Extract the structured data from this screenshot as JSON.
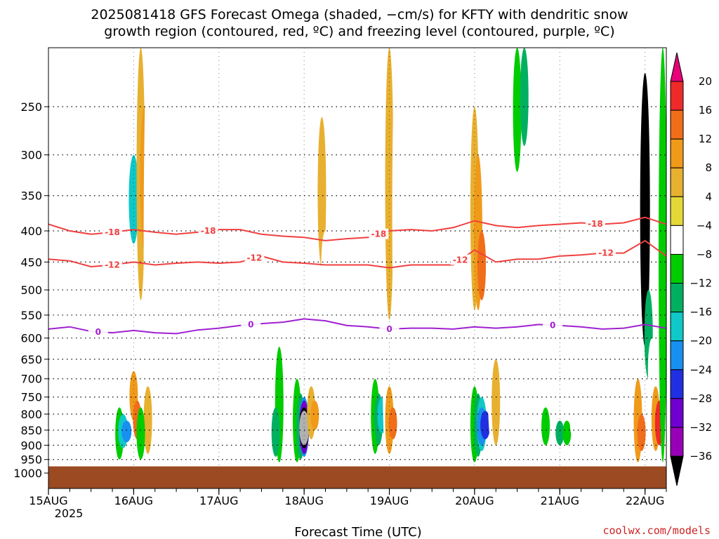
{
  "chart_data": {
    "type": "heatmap",
    "title_lines": [
      "2025081418 GFS Forecast Omega (shaded, −cm/s) for KFTY with dendritic snow",
      "growth region (contoured, red, ºC) and freezing level (contoured, purple, ºC)"
    ],
    "xlabel": "Forecast Time (UTC)",
    "x_ticks": [
      "15AUG",
      "16AUG",
      "17AUG",
      "18AUG",
      "19AUG",
      "20AUG",
      "21AUG",
      "22AUG"
    ],
    "x_tick_positions_hours": [
      18,
      42,
      66,
      90,
      114,
      138,
      162,
      186
    ],
    "x_range_hours": [
      18,
      192
    ],
    "x_year_label": "2025",
    "y_ticks": [
      "250",
      "300",
      "350",
      "400",
      "450",
      "500",
      "550",
      "600",
      "650",
      "700",
      "750",
      "800",
      "850",
      "900",
      "950",
      "1000"
    ],
    "y_tick_values": [
      250,
      300,
      350,
      400,
      450,
      500,
      550,
      600,
      650,
      700,
      750,
      800,
      850,
      900,
      950,
      1000
    ],
    "y_range_hpa": [
      200,
      1000
    ],
    "y_scale": "log-pressure, inverted",
    "ground_level_hpa": 975,
    "grid": true,
    "colorbar": {
      "levels": [
        "20",
        "16",
        "12",
        "8",
        "4",
        "−4",
        "−8",
        "−12",
        "−16",
        "−20",
        "−24",
        "−28",
        "−32",
        "−36"
      ],
      "colors": [
        "#e8007a",
        "#ee2a2a",
        "#f06e1a",
        "#f09a1a",
        "#e8b030",
        "#e4d838",
        "#ffffff",
        "#00cc00",
        "#00b060",
        "#10c8c8",
        "#1890f0",
        "#2030e0",
        "#7000d0",
        "#9800b8",
        "#b0b0b0",
        "#000000"
      ]
    },
    "contours": [
      {
        "name": "-18",
        "color": "#f04040",
        "labels": [
          "-18",
          "-18",
          "-18",
          "-18"
        ],
        "label_hours": [
          36,
          63,
          111,
          172
        ],
        "points": [
          [
            18,
            390
          ],
          [
            24,
            400
          ],
          [
            30,
            405
          ],
          [
            36,
            402
          ],
          [
            42,
            398
          ],
          [
            48,
            402
          ],
          [
            54,
            405
          ],
          [
            60,
            402
          ],
          [
            66,
            398
          ],
          [
            72,
            398
          ],
          [
            78,
            405
          ],
          [
            84,
            408
          ],
          [
            90,
            410
          ],
          [
            96,
            415
          ],
          [
            102,
            412
          ],
          [
            108,
            410
          ],
          [
            114,
            400
          ],
          [
            120,
            398
          ],
          [
            126,
            400
          ],
          [
            132,
            395
          ],
          [
            138,
            385
          ],
          [
            144,
            392
          ],
          [
            150,
            395
          ],
          [
            156,
            392
          ],
          [
            162,
            390
          ],
          [
            168,
            388
          ],
          [
            174,
            390
          ],
          [
            180,
            388
          ],
          [
            186,
            380
          ],
          [
            192,
            390
          ]
        ]
      },
      {
        "name": "-12",
        "color": "#f04040",
        "labels": [
          "-12",
          "-12",
          "-12",
          "-12"
        ],
        "label_hours": [
          36,
          76,
          134,
          175
        ],
        "points": [
          [
            18,
            445
          ],
          [
            24,
            448
          ],
          [
            30,
            458
          ],
          [
            36,
            455
          ],
          [
            42,
            450
          ],
          [
            48,
            455
          ],
          [
            54,
            452
          ],
          [
            60,
            450
          ],
          [
            66,
            452
          ],
          [
            72,
            450
          ],
          [
            78,
            440
          ],
          [
            84,
            450
          ],
          [
            90,
            452
          ],
          [
            96,
            455
          ],
          [
            102,
            455
          ],
          [
            108,
            455
          ],
          [
            114,
            460
          ],
          [
            120,
            455
          ],
          [
            126,
            455
          ],
          [
            132,
            455
          ],
          [
            138,
            430
          ],
          [
            144,
            450
          ],
          [
            150,
            445
          ],
          [
            156,
            445
          ],
          [
            162,
            440
          ],
          [
            168,
            438
          ],
          [
            174,
            435
          ],
          [
            180,
            435
          ],
          [
            186,
            415
          ],
          [
            192,
            440
          ]
        ]
      },
      {
        "name": "0",
        "color": "#a020d0",
        "labels": [
          "0",
          "0",
          "0",
          "0"
        ],
        "label_hours": [
          32,
          75,
          114,
          160
        ],
        "points": [
          [
            18,
            580
          ],
          [
            24,
            575
          ],
          [
            30,
            585
          ],
          [
            36,
            588
          ],
          [
            42,
            583
          ],
          [
            48,
            588
          ],
          [
            54,
            590
          ],
          [
            60,
            582
          ],
          [
            66,
            578
          ],
          [
            72,
            572
          ],
          [
            78,
            568
          ],
          [
            84,
            565
          ],
          [
            90,
            558
          ],
          [
            96,
            562
          ],
          [
            102,
            572
          ],
          [
            108,
            575
          ],
          [
            114,
            580
          ],
          [
            120,
            578
          ],
          [
            126,
            578
          ],
          [
            132,
            580
          ],
          [
            138,
            575
          ],
          [
            144,
            578
          ],
          [
            150,
            575
          ],
          [
            156,
            570
          ],
          [
            162,
            572
          ],
          [
            168,
            575
          ],
          [
            174,
            580
          ],
          [
            180,
            578
          ],
          [
            186,
            570
          ],
          [
            192,
            578
          ]
        ]
      }
    ],
    "omega_cells": [
      [
        20,
        250,
        380,
        6
      ],
      [
        20,
        680,
        800,
        6
      ],
      [
        22,
        560,
        760,
        6
      ],
      [
        26,
        300,
        480,
        6
      ],
      [
        28,
        700,
        900,
        6
      ],
      [
        36,
        260,
        560,
        6
      ],
      [
        40,
        200,
        460,
        6
      ],
      [
        40,
        480,
        620,
        6
      ],
      [
        38,
        780,
        950,
        7
      ],
      [
        39,
        800,
        910,
        9
      ],
      [
        40,
        820,
        890,
        10
      ],
      [
        42,
        200,
        960,
        6
      ],
      [
        42,
        300,
        420,
        9
      ],
      [
        42,
        680,
        820,
        3
      ],
      [
        43,
        760,
        880,
        2
      ],
      [
        44,
        200,
        520,
        4
      ],
      [
        45,
        250,
        430,
        3
      ],
      [
        46,
        200,
        920,
        6
      ],
      [
        46,
        720,
        930,
        4
      ],
      [
        44,
        780,
        950,
        7
      ],
      [
        50,
        240,
        420,
        6
      ],
      [
        52,
        330,
        680,
        6
      ],
      [
        56,
        300,
        480,
        6
      ],
      [
        60,
        360,
        560,
        6
      ],
      [
        62,
        250,
        380,
        6
      ],
      [
        66,
        420,
        620,
        6
      ],
      [
        72,
        300,
        520,
        6
      ],
      [
        74,
        440,
        700,
        6
      ],
      [
        76,
        250,
        420,
        6
      ],
      [
        80,
        440,
        640,
        6
      ],
      [
        82,
        700,
        840,
        6
      ],
      [
        83,
        620,
        960,
        7
      ],
      [
        82,
        780,
        940,
        8
      ],
      [
        86,
        500,
        700,
        6
      ],
      [
        86,
        740,
        920,
        6
      ],
      [
        88,
        700,
        960,
        7
      ],
      [
        89,
        740,
        950,
        8
      ],
      [
        90,
        750,
        940,
        10
      ],
      [
        90,
        760,
        930,
        12
      ],
      [
        90,
        780,
        910,
        15
      ],
      [
        90,
        790,
        900,
        14
      ],
      [
        92,
        720,
        880,
        4
      ],
      [
        93,
        760,
        850,
        3
      ],
      [
        94,
        200,
        560,
        6
      ],
      [
        95,
        260,
        460,
        4
      ],
      [
        96,
        400,
        520,
        6
      ],
      [
        100,
        300,
        520,
        6
      ],
      [
        104,
        330,
        440,
        6
      ],
      [
        106,
        400,
        520,
        6
      ],
      [
        110,
        700,
        930,
        7
      ],
      [
        111,
        740,
        900,
        8
      ],
      [
        112,
        750,
        860,
        9
      ],
      [
        113,
        200,
        960,
        6
      ],
      [
        114,
        200,
        560,
        4
      ],
      [
        114,
        720,
        930,
        3
      ],
      [
        115,
        780,
        880,
        2
      ],
      [
        116,
        200,
        700,
        6
      ],
      [
        124,
        460,
        560,
        6
      ],
      [
        128,
        640,
        760,
        6
      ],
      [
        134,
        760,
        900,
        6
      ],
      [
        137,
        250,
        960,
        6
      ],
      [
        138,
        250,
        540,
        4
      ],
      [
        139,
        300,
        540,
        3
      ],
      [
        140,
        400,
        520,
        2
      ],
      [
        138,
        720,
        960,
        7
      ],
      [
        139,
        740,
        940,
        8
      ],
      [
        140,
        750,
        920,
        9
      ],
      [
        140,
        780,
        900,
        10
      ],
      [
        141,
        790,
        880,
        11
      ],
      [
        143,
        650,
        900,
        6
      ],
      [
        144,
        650,
        900,
        4
      ],
      [
        148,
        200,
        360,
        6
      ],
      [
        150,
        200,
        320,
        7
      ],
      [
        152,
        200,
        290,
        8
      ],
      [
        156,
        200,
        320,
        6
      ],
      [
        154,
        760,
        900,
        6
      ],
      [
        158,
        780,
        900,
        7
      ],
      [
        162,
        820,
        900,
        8
      ],
      [
        164,
        820,
        900,
        7
      ],
      [
        166,
        760,
        880,
        6
      ],
      [
        170,
        220,
        320,
        6
      ],
      [
        176,
        200,
        260,
        6
      ],
      [
        180,
        300,
        360,
        6
      ],
      [
        180,
        580,
        640,
        6
      ],
      [
        182,
        200,
        300,
        6
      ],
      [
        184,
        700,
        960,
        3
      ],
      [
        185,
        800,
        920,
        2
      ],
      [
        186,
        220,
        620,
        15
      ],
      [
        187,
        500,
        700,
        8
      ],
      [
        188,
        600,
        760,
        6
      ],
      [
        189,
        720,
        920,
        3
      ],
      [
        190,
        760,
        900,
        1
      ],
      [
        191,
        200,
        960,
        7
      ]
    ]
  }
}
